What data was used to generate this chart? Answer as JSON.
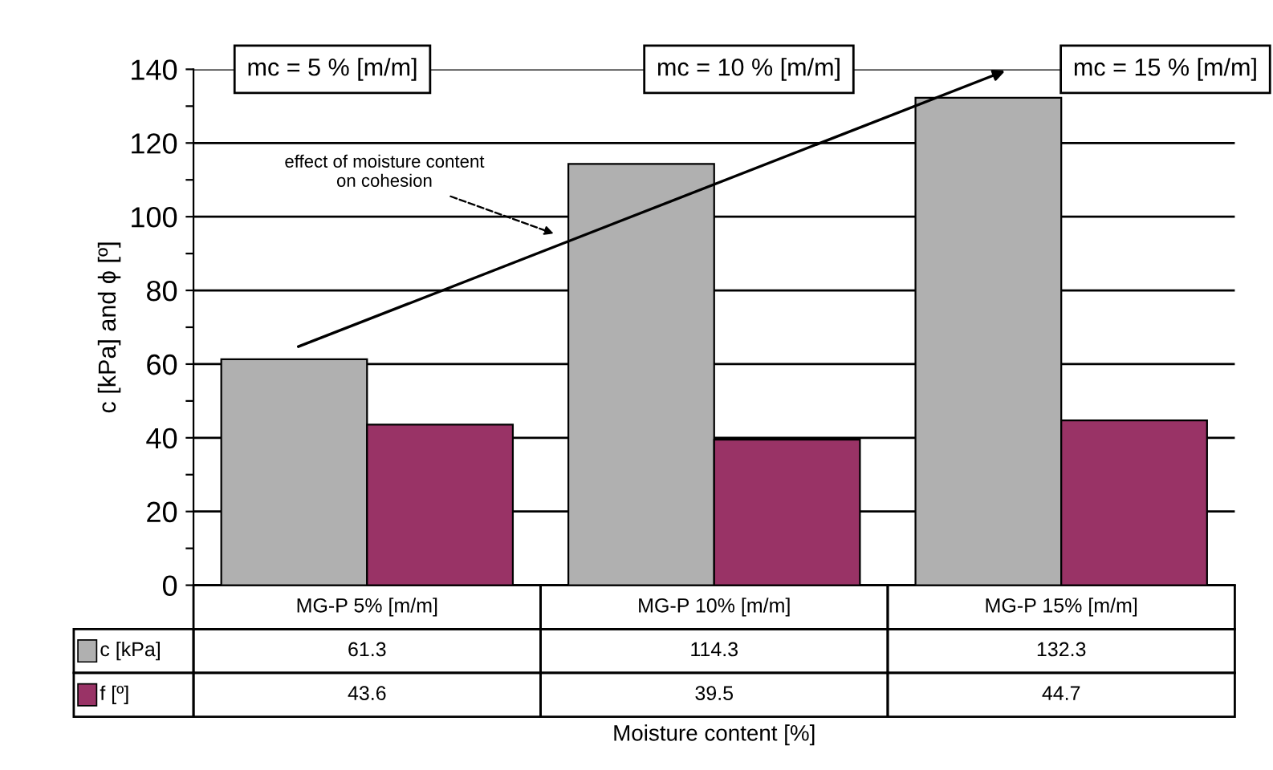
{
  "chart_data": {
    "type": "bar",
    "ylabel": "c [kPa] and ϕ [º]",
    "xlabel": "Moisture content [%]",
    "categories": [
      "MG-P 5% [m/m]",
      "MG-P 10% [m/m]",
      "MG-P 15% [m/m]"
    ],
    "series": [
      {
        "name": "c [kPa]",
        "color": "#b0b0b0",
        "values": [
          61.3,
          114.3,
          132.3
        ]
      },
      {
        "name": "f [º]",
        "color": "#993366",
        "values": [
          43.6,
          39.5,
          44.7
        ]
      }
    ],
    "ylim": [
      0,
      140
    ],
    "yticks": [
      0,
      {
        "value": 10,
        "label": null
      },
      20,
      {
        "value": 30,
        "label": null
      },
      40,
      {
        "value": 50,
        "label": null
      },
      60,
      {
        "value": 70,
        "label": null
      },
      80,
      {
        "value": 90,
        "label": null
      },
      100,
      {
        "value": 110,
        "label": null
      },
      120,
      {
        "value": 130,
        "label": null
      },
      140
    ],
    "grid": "y",
    "data_labels": true,
    "legend": "bottom left",
    "annotations": [
      "mc = 5 % [m/m]",
      "mc = 10 % [m/m]",
      "mc = 15 % [m/m]",
      "effect of moisture content\non cohesion"
    ]
  }
}
